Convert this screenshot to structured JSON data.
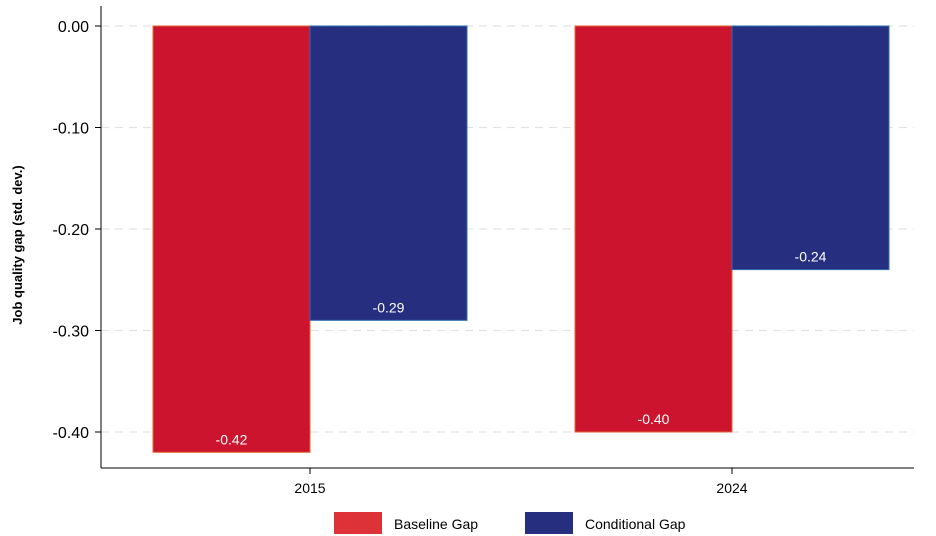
{
  "chart_data": {
    "type": "bar",
    "title": "",
    "xlabel": "",
    "ylabel": "Job quality gap (std. dev.)",
    "categories": [
      "2015",
      "2024"
    ],
    "series": [
      {
        "name": "Baseline Gap",
        "values": [
          -0.42,
          -0.4
        ],
        "labels": [
          "-0.42",
          "-0.40"
        ],
        "color": "#cc142e",
        "legend_color": "#dc3238",
        "edge_color": "#e0662e"
      },
      {
        "name": "Conditional Gap",
        "values": [
          -0.29,
          -0.24
        ],
        "labels": [
          "-0.29",
          "-0.24"
        ],
        "color": "#262e80",
        "legend_color": "#262e80",
        "edge_color": "#2e6fb0"
      }
    ],
    "ylim": [
      -0.44,
      0.02
    ],
    "yticks": [
      0.0,
      -0.1,
      -0.2,
      -0.3,
      -0.4
    ],
    "ytick_labels": [
      "0.00",
      "-0.10",
      "-0.20",
      "-0.30",
      "-0.40"
    ],
    "grid": "horizontal dashed",
    "legend_position": "bottom-center",
    "data_label_position": "inside bar end"
  }
}
